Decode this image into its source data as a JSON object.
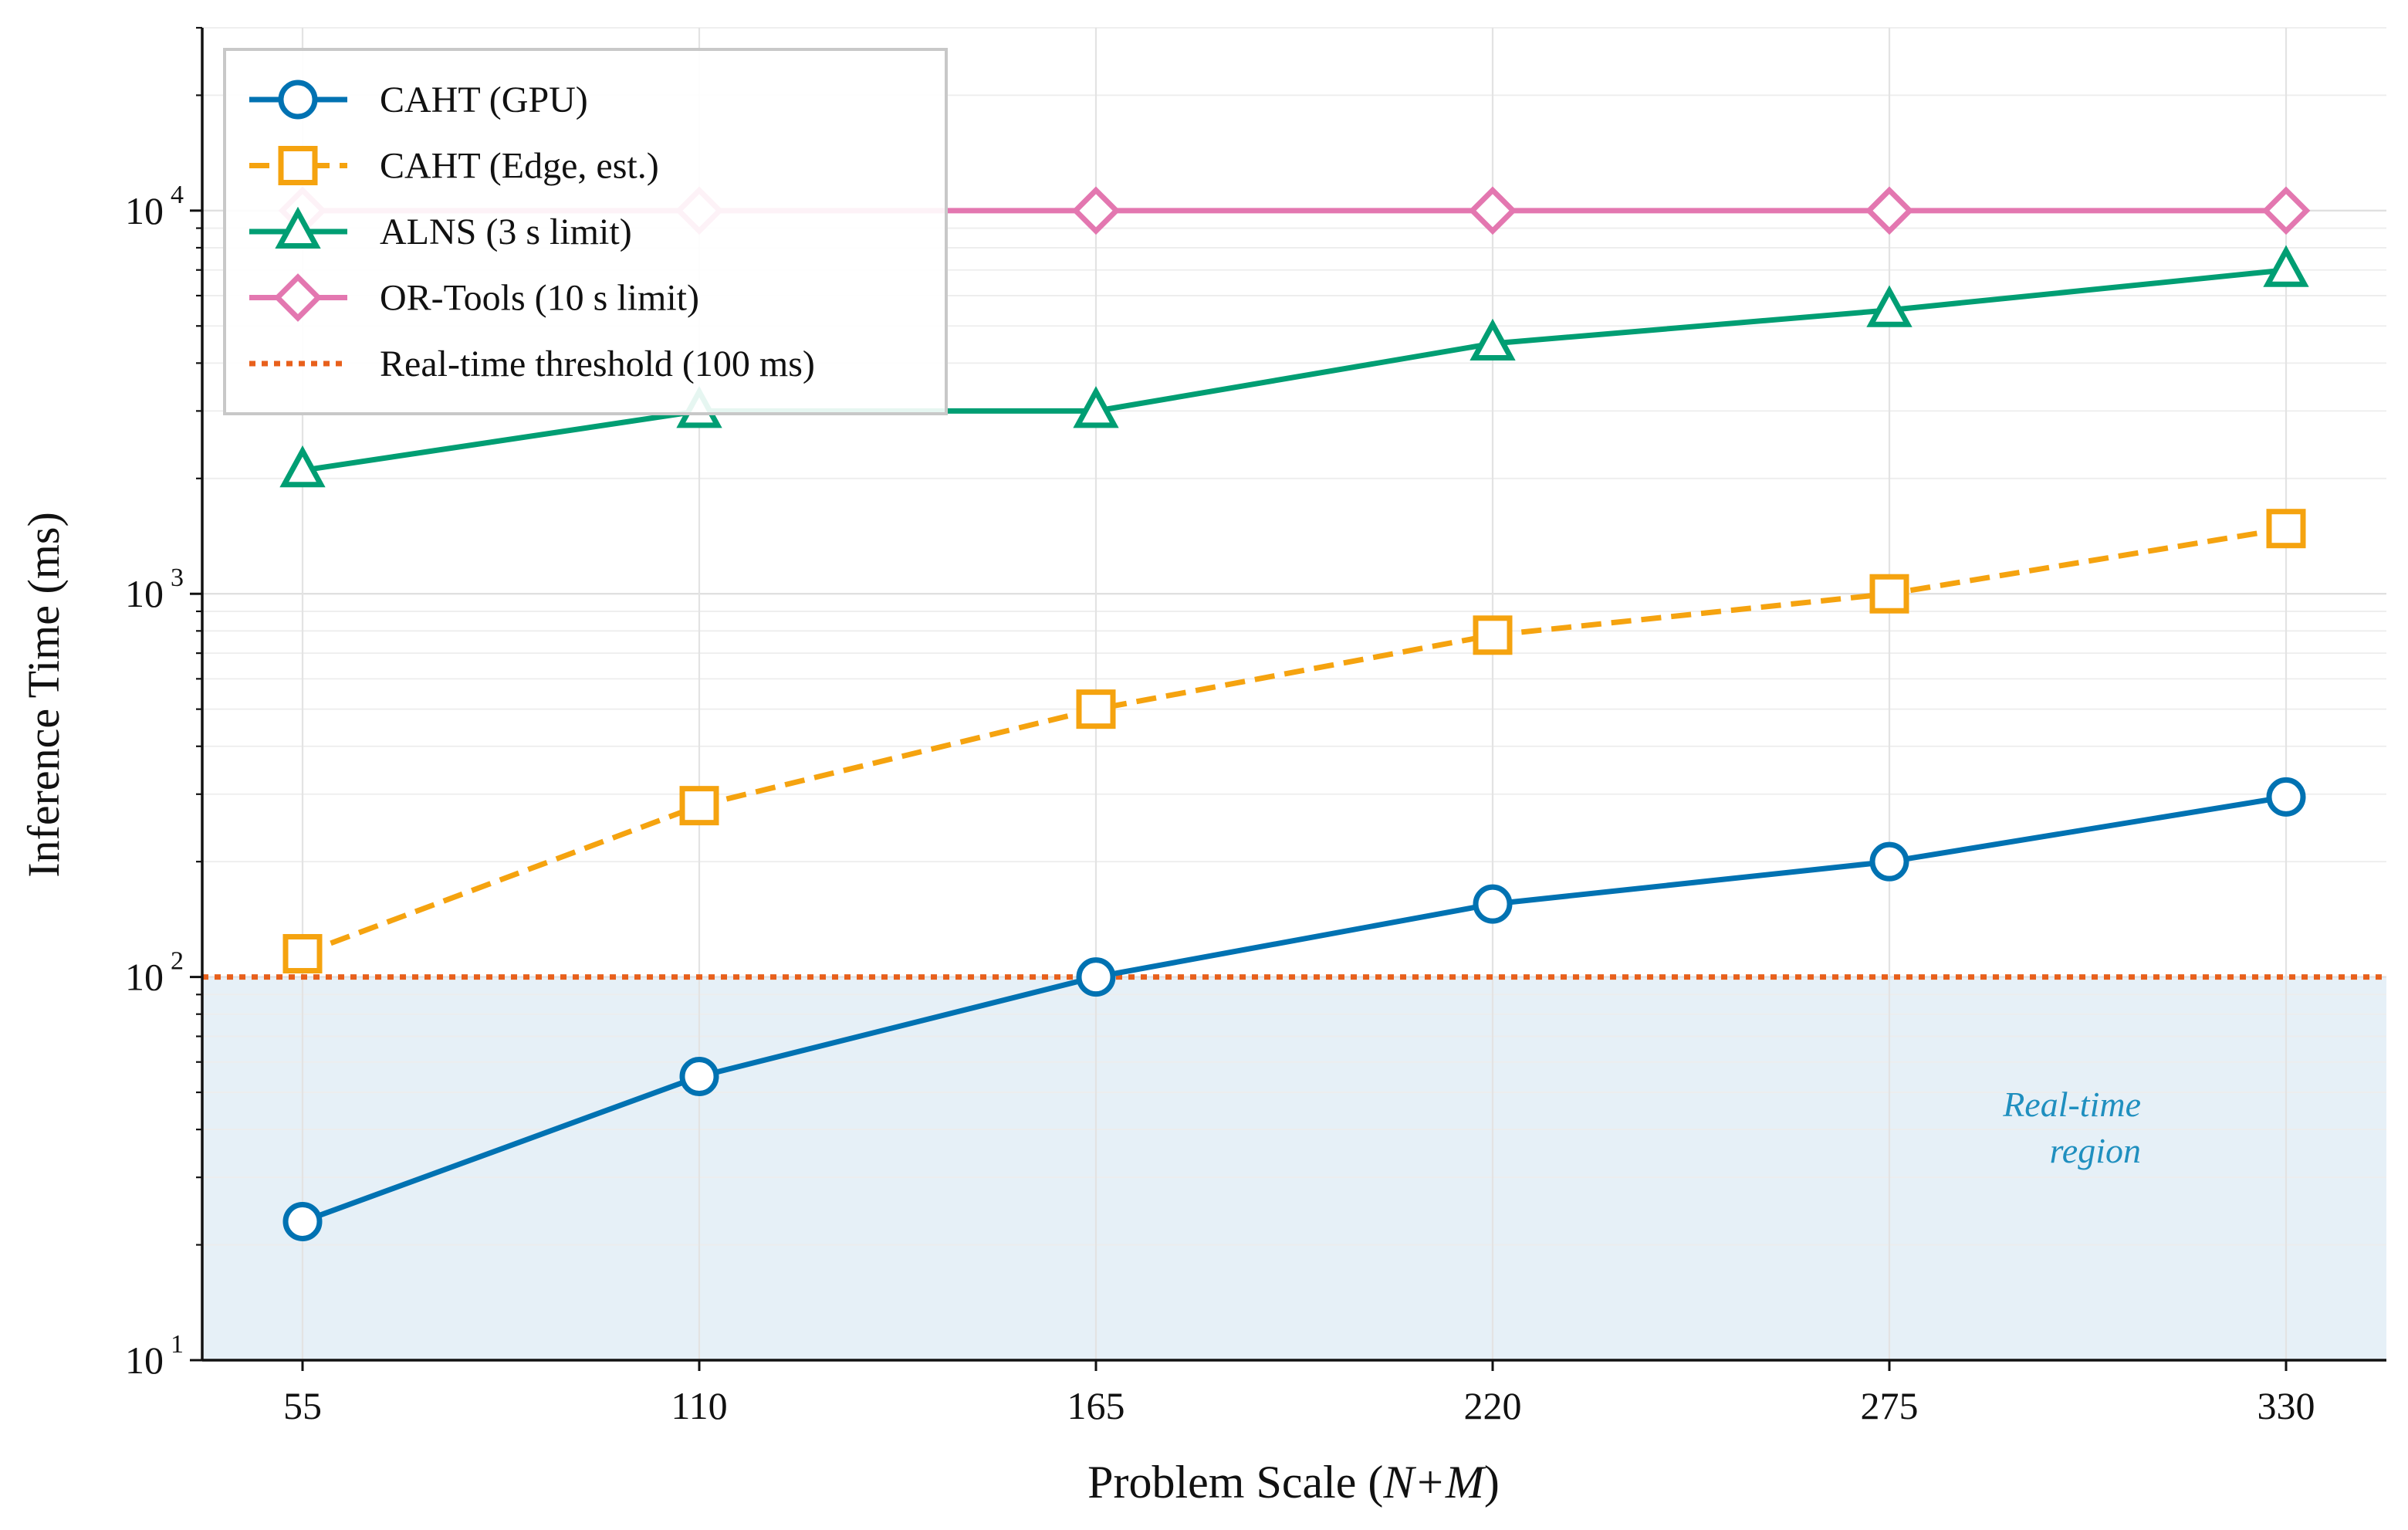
{
  "chart_data": {
    "type": "line",
    "xlabel": "Problem Scale (",
    "xlabel_var": "N+M",
    "xlabel_close": ")",
    "ylabel": "Inference Time (ms)",
    "y_scale": "log",
    "ylim": [
      10,
      30000
    ],
    "x": [
      55,
      110,
      165,
      220,
      275,
      330
    ],
    "x_tick_labels": [
      "55",
      "110",
      "165",
      "220",
      "275",
      "330"
    ],
    "y_ticks": [
      {
        "value": 10,
        "base": "10",
        "exp": "1"
      },
      {
        "value": 100,
        "base": "10",
        "exp": "2"
      },
      {
        "value": 1000,
        "base": "10",
        "exp": "3"
      },
      {
        "value": 10000,
        "base": "10",
        "exp": "4"
      }
    ],
    "grid": true,
    "legend_position": "top-left",
    "series": [
      {
        "name": "CAHT (GPU)",
        "color": "#0072B2",
        "marker": "circle",
        "dash": "solid",
        "values": [
          23,
          55,
          100,
          155,
          200,
          295
        ]
      },
      {
        "name": "CAHT (Edge, est.)",
        "color": "#F5A30F",
        "marker": "square",
        "dash": "dashed",
        "values": [
          115,
          280,
          500,
          780,
          1000,
          1480
        ]
      },
      {
        "name": "ALNS (3 s limit)",
        "color": "#009E73",
        "marker": "triangle",
        "dash": "solid",
        "values": [
          2100,
          3000,
          3000,
          4500,
          5500,
          7000
        ]
      },
      {
        "name": "OR-Tools (10 s limit)",
        "color": "#E377B0",
        "marker": "diamond",
        "dash": "solid",
        "values": [
          10000,
          10000,
          10000,
          10000,
          10000,
          10000
        ]
      }
    ],
    "threshold": {
      "name": "Real-time threshold (100 ms)",
      "value": 100,
      "color": "#E8601C"
    },
    "region": {
      "label_line1": "Real-time",
      "label_line2": "region",
      "color": "#1F8FBF",
      "fill": "#E6F0F7"
    }
  }
}
